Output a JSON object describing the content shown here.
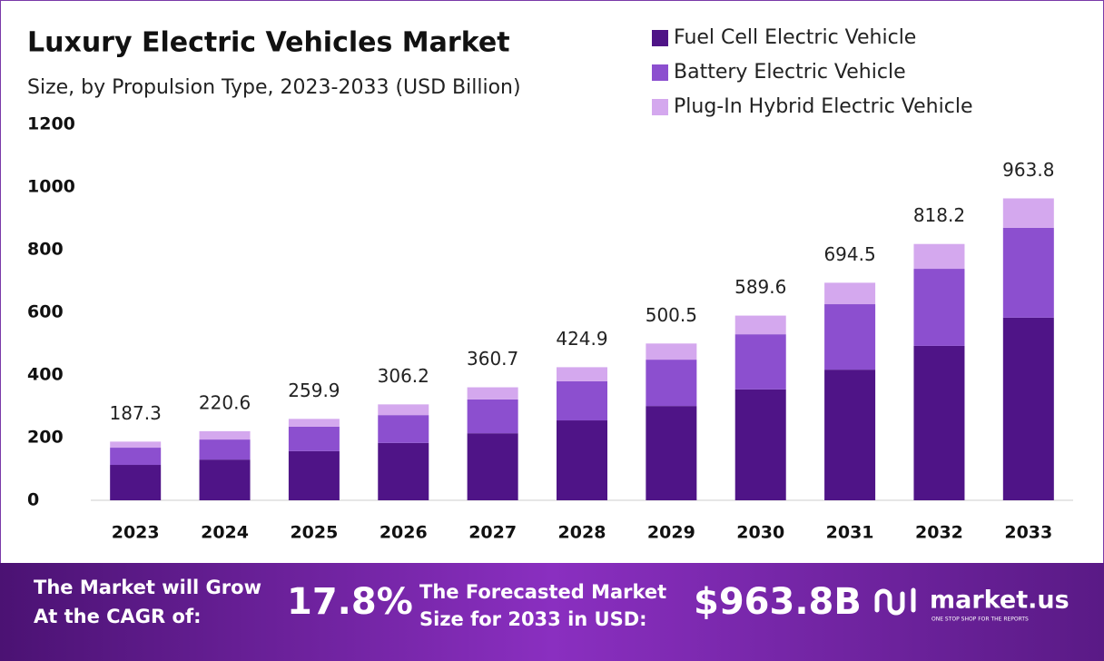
{
  "chart_data": {
    "type": "stacked_bar",
    "title": "Luxury Electric Vehicles Market",
    "subtitle": "Size, by Propulsion Type, 2023-2033 (USD Billion)",
    "categories": [
      "2023",
      "2024",
      "2025",
      "2026",
      "2027",
      "2028",
      "2029",
      "2030",
      "2031",
      "2032",
      "2033"
    ],
    "series": [
      {
        "name": "Fuel Cell Electric Vehicle",
        "color": "#4f1487",
        "values": [
          113,
          130,
          157,
          183,
          214,
          255,
          301,
          354,
          417,
          493,
          583
        ]
      },
      {
        "name": "Battery Electric Vehicle",
        "color": "#8c4fcf",
        "values": [
          55,
          64,
          78,
          89,
          108,
          125,
          148,
          176,
          209,
          246,
          287
        ]
      },
      {
        "name": "Plug-In Hybrid Electric Vehicle",
        "color": "#d4a8ee",
        "values": [
          19.3,
          26.6,
          24.9,
          34.2,
          38.7,
          44.9,
          51.5,
          59.6,
          68.5,
          79.2,
          93.8
        ]
      }
    ],
    "totals": [
      187.3,
      220.6,
      259.9,
      306.2,
      360.7,
      424.9,
      500.5,
      589.6,
      694.5,
      818.2,
      963.8
    ],
    "ylim": [
      0,
      1200
    ],
    "yticks": [
      0,
      200,
      400,
      600,
      800,
      1000,
      1200
    ],
    "grid": false
  },
  "footer": {
    "cagr_label": [
      "The Market will Grow",
      "At the CAGR of:"
    ],
    "cagr": "17.8%",
    "forecast_label": [
      "The Forecasted Market",
      "Size for 2033 in USD:"
    ],
    "forecast": "$963.8B",
    "brand": "market.us",
    "tagline": "ONE STOP SHOP FOR THE REPORTS"
  }
}
